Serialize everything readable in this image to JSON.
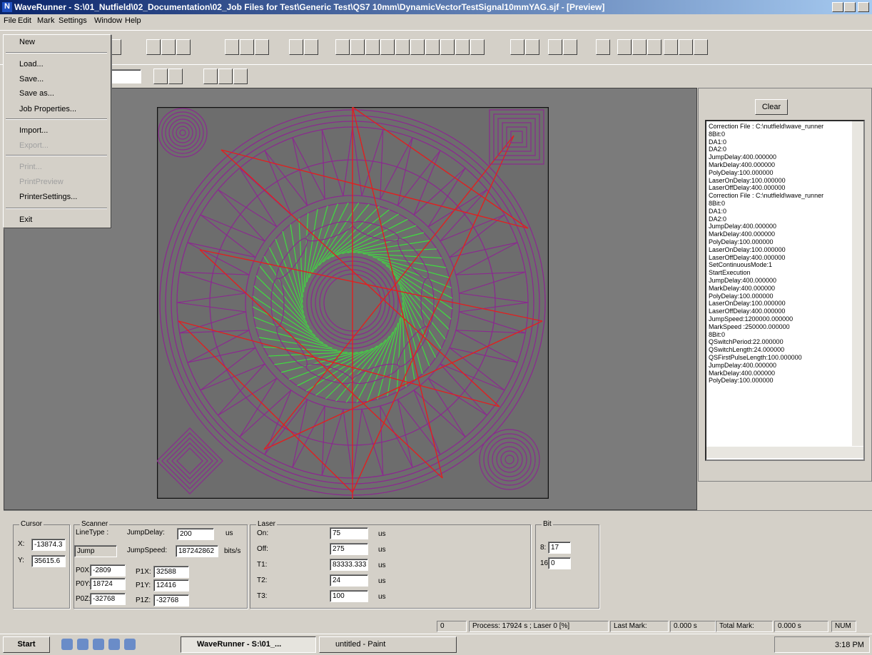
{
  "title_bar": {
    "title": "WaveRunner - S:\\01_Nutfield\\02_Documentation\\02_Job Files for Test\\Generic Test\\QS7 10mm\\DynamicVectorTestSignal10mmYAG.sjf - [Preview]"
  },
  "menu_bar": {
    "items": [
      "File",
      "Edit",
      "Mark",
      "Settings",
      "Window",
      "Help"
    ]
  },
  "file_menu": {
    "items": [
      "New",
      "Load...",
      "Save...",
      "Save as...",
      "Job Properties...",
      "Import...",
      "Export...",
      "Print...",
      "PrintPreview",
      "PrinterSettings...",
      "Exit"
    ]
  },
  "log_panel": {
    "button": "Clear",
    "lines": [
      "Correction File : C:\\nutfield\\wave_runner",
      "8Bit:0",
      "DA1:0",
      "DA2:0",
      "JumpDelay:400.000000",
      "MarkDelay:400.000000",
      "PolyDelay:100.000000",
      "LaserOnDelay:100.000000",
      "LaserOffDelay:400.000000",
      "Correction File : C:\\nutfield\\wave_runner",
      "8Bit:0",
      "DA1:0",
      "DA2:0",
      "JumpDelay:400.000000",
      "MarkDelay:400.000000",
      "PolyDelay:100.000000",
      "LaserOnDelay:100.000000",
      "LaserOffDelay:400.000000",
      "SetContinuousMode:1",
      "StartExecution",
      "JumpDelay:400.000000",
      "MarkDelay:400.000000",
      "PolyDelay:100.000000",
      "LaserOnDelay:100.000000",
      "LaserOffDelay:400.000000",
      "JumpSpeed:1200000.000000",
      "MarkSpeed :250000.000000",
      "8Bit:0",
      "QSwitchPeriod:22.000000",
      "QSwitchLength:24.000000",
      "QSFirstPulseLength:100.000000",
      "JumpDelay:400.000000",
      "MarkDelay:400.000000",
      "PolyDelay:100.000000"
    ]
  },
  "cursor": {
    "title": "Cursor",
    "x_label": "X:",
    "x": "-13874.3",
    "y_label": "Y:",
    "y": "35615.6"
  },
  "scanner": {
    "title": "Scanner",
    "line_type_label": "LineType :",
    "line_type": "Jump",
    "jump_delay_label": "JumpDelay:",
    "jump_delay": "200",
    "jump_delay_unit": "us",
    "jump_speed_label": "JumpSpeed:",
    "jump_speed": "187242862",
    "jump_speed_unit": "bits/s",
    "p0x_label": "P0X:",
    "p0x": "-2809",
    "p1x_label": "P1X:",
    "p1x": "32588",
    "p0y_label": "P0Y:",
    "p0y": "18724",
    "p1y_label": "P1Y:",
    "p1y": "12416",
    "p0z_label": "P0Z:",
    "p0z": "-32768",
    "p1z_label": "P1Z:",
    "p1z": "-32768"
  },
  "laser": {
    "title": "Laser",
    "rows": [
      {
        "label": "On:",
        "value": "75",
        "unit": "us"
      },
      {
        "label": "Off:",
        "value": "275",
        "unit": "us"
      },
      {
        "label": "T1:",
        "value": "83333.333",
        "unit": "us"
      },
      {
        "label": "T2:",
        "value": "24",
        "unit": "us"
      },
      {
        "label": "T3:",
        "value": "100",
        "unit": "us"
      }
    ]
  },
  "bit": {
    "title": "Bit",
    "rows": [
      {
        "label": "8:",
        "value": "17"
      },
      {
        "label": "16:",
        "value": "0"
      }
    ]
  },
  "status_bar": {
    "count": "0",
    "process": "Process:  17924 s ; Laser  0 [%]",
    "last_mark_label": "Last Mark:",
    "last_mark": "0.000 s",
    "total_mark_label": "Total Mark:",
    "total_mark": "0.000 s",
    "num": "NUM"
  },
  "taskbar": {
    "start": "Start",
    "tasks": [
      "WaveRunner - S:\\01_...",
      "untitled - Paint"
    ],
    "clock": "3:18 PM"
  }
}
